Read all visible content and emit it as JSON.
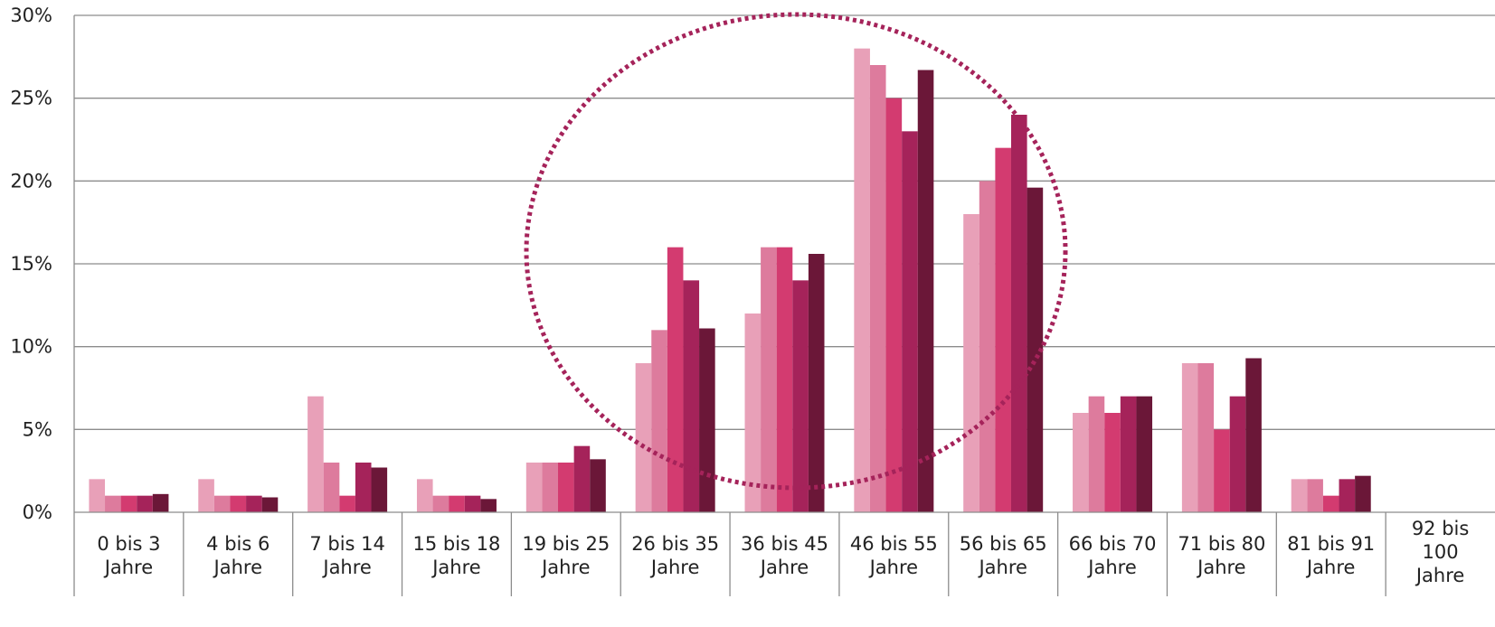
{
  "chart_data": {
    "type": "bar",
    "categories": [
      [
        "0 bis 3",
        "Jahre"
      ],
      [
        "4 bis 6",
        "Jahre"
      ],
      [
        "7 bis 14",
        "Jahre"
      ],
      [
        "15 bis 18",
        "Jahre"
      ],
      [
        "19 bis 25",
        "Jahre"
      ],
      [
        "26 bis 35",
        "Jahre"
      ],
      [
        "36 bis 45",
        "Jahre"
      ],
      [
        "46 bis 55",
        "Jahre"
      ],
      [
        "56 bis 65",
        "Jahre"
      ],
      [
        "66 bis 70",
        "Jahre"
      ],
      [
        "71 bis 80",
        "Jahre"
      ],
      [
        "81 bis 91",
        "Jahre"
      ],
      [
        "92 bis",
        "100",
        "Jahre"
      ]
    ],
    "series": [
      {
        "color": "#e8a0b8",
        "values": [
          2,
          2,
          7,
          2,
          3,
          9,
          12,
          28,
          18,
          6,
          9,
          2,
          0
        ]
      },
      {
        "color": "#dd7b9d",
        "values": [
          1,
          1,
          3,
          1,
          3,
          11,
          16,
          27,
          20,
          7,
          9,
          2,
          0
        ]
      },
      {
        "color": "#d33b70",
        "values": [
          1,
          1,
          1,
          1,
          3,
          16,
          16,
          25,
          22,
          6,
          5,
          1,
          0
        ]
      },
      {
        "color": "#a5235a",
        "values": [
          1,
          1,
          3,
          1,
          4,
          14,
          14,
          23,
          24,
          7,
          7,
          2,
          0
        ]
      },
      {
        "color": "#6b1738",
        "values": [
          1.1,
          0.9,
          2.7,
          0.8,
          3.2,
          11.1,
          15.6,
          26.7,
          19.6,
          7,
          9.3,
          2.2,
          0
        ]
      }
    ],
    "y_ticks": [
      "0%",
      "5%",
      "10%",
      "15%",
      "20%",
      "25%",
      "30%"
    ],
    "ylim": [
      0,
      30
    ],
    "grid": true,
    "annotation": {
      "type": "dotted-ellipse",
      "color": "#a5235a",
      "around_categories": [
        "26 bis 35",
        "36 bis 45",
        "46 bis 55",
        "56 bis 65"
      ]
    }
  }
}
